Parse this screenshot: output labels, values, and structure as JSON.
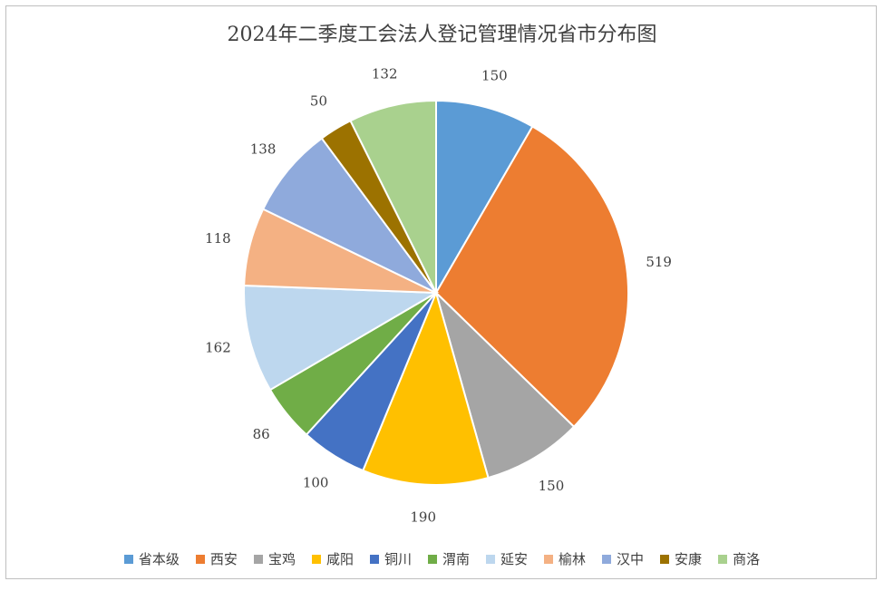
{
  "chart_data": {
    "type": "pie",
    "title": "2024年二季度工会法人登记管理情况省市分布图",
    "categories": [
      "省本级",
      "西安",
      "宝鸡",
      "咸阳",
      "铜川",
      "渭南",
      "延安",
      "榆林",
      "汉中",
      "安康",
      "商洛"
    ],
    "values": [
      150,
      519,
      150,
      190,
      100,
      86,
      162,
      118,
      138,
      50,
      132
    ],
    "colors": [
      "#5b9bd5",
      "#ed7d31",
      "#a5a5a5",
      "#ffc000",
      "#4472c4",
      "#70ad47",
      "#bdd7ee",
      "#f4b183",
      "#8faadc",
      "#9c7200",
      "#a9d18e"
    ],
    "legend_position": "bottom",
    "data_labels": true
  }
}
